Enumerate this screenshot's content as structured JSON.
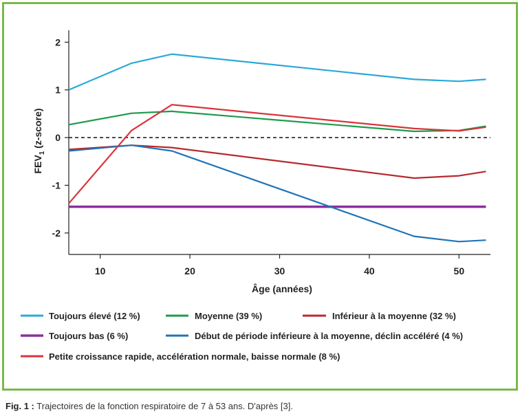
{
  "caption": {
    "label": "Fig. 1 :",
    "text": "Trajectoires de la fonction respiratoire de 7 à 53 ans. D'après [3]."
  },
  "colors": {
    "frame": "#79b94a",
    "toujours_eleve": "#2aa9d8",
    "moyenne": "#1e9a4a",
    "inferieur": "#b8282e",
    "toujours_bas": "#8a2f9e",
    "debut_periode": "#1f73b7",
    "petite_croissance": "#d8343a"
  },
  "chart_data": {
    "type": "line",
    "xlabel": "Âge (années)",
    "ylabel_main": "FEV",
    "ylabel_sub": "1",
    "ylabel_rest": " (z-score)",
    "xlim": [
      6.5,
      53.5
    ],
    "ylim": [
      -2.45,
      2.25
    ],
    "xticks": [
      10,
      20,
      30,
      40,
      50
    ],
    "yticks": [
      2,
      1,
      0,
      -1,
      -2
    ],
    "reference_line": {
      "y": 0,
      "style": "dashed"
    },
    "legend_position": "bottom",
    "series": [
      {
        "name": "Toujours élevé (12 %)",
        "color": "#2aa9d8",
        "x": [
          6.5,
          13.5,
          18,
          45,
          50,
          53
        ],
        "y": [
          1.0,
          1.56,
          1.75,
          1.22,
          1.18,
          1.22
        ]
      },
      {
        "name": "Moyenne (39 %)",
        "color": "#1e9a4a",
        "x": [
          6.5,
          13.5,
          18,
          45,
          50,
          53
        ],
        "y": [
          0.27,
          0.51,
          0.55,
          0.13,
          0.15,
          0.24
        ]
      },
      {
        "name": "Inférieur à la moyenne (32 %)",
        "color": "#b8282e",
        "x": [
          6.5,
          13.5,
          18,
          45,
          50,
          53
        ],
        "y": [
          -0.25,
          -0.16,
          -0.21,
          -0.85,
          -0.8,
          -0.71
        ]
      },
      {
        "name": "Toujours bas (6 %)",
        "color": "#8a2f9e",
        "x": [
          6.5,
          53
        ],
        "y": [
          -1.45,
          -1.45
        ]
      },
      {
        "name": "Début de période inférieure à la moyenne, déclin accéléré (4 %)",
        "color": "#1f73b7",
        "x": [
          6.5,
          13.5,
          18,
          45,
          50,
          53
        ],
        "y": [
          -0.28,
          -0.16,
          -0.28,
          -2.07,
          -2.18,
          -2.15
        ]
      },
      {
        "name": "Petite croissance rapide, accélération normale, baisse normale (8 %)",
        "color": "#d8343a",
        "x": [
          6.5,
          13.5,
          18,
          45,
          50,
          53
        ],
        "y": [
          -1.38,
          0.15,
          0.69,
          0.19,
          0.14,
          0.22
        ]
      }
    ]
  }
}
